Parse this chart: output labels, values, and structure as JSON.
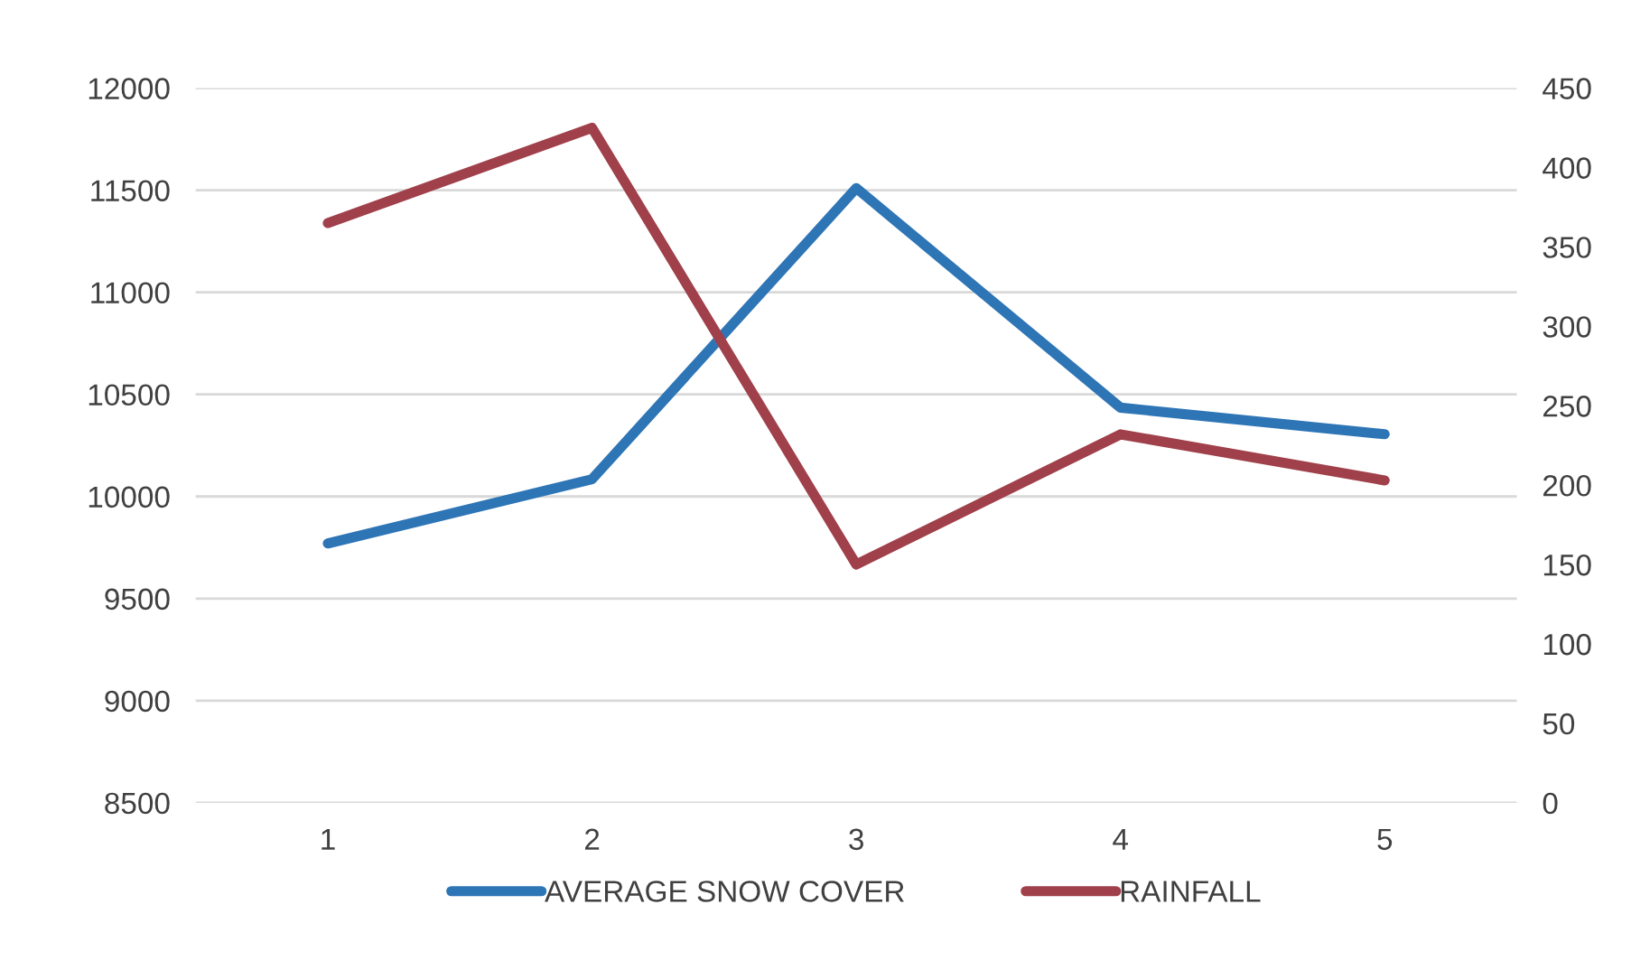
{
  "chart_data": {
    "type": "line",
    "categories": [
      "1",
      "2",
      "3",
      "4",
      "5"
    ],
    "series": [
      {
        "name": "AVERAGE SNOW COVER",
        "color": "#2e75b6",
        "values": [
          9770,
          10085,
          11510,
          10435,
          10305
        ]
      },
      {
        "name": "RAINFALL",
        "color": "#a0404a",
        "axis": "y2",
        "values": [
          365,
          425,
          150,
          232,
          203
        ]
      }
    ],
    "ylim": [
      8500,
      12000
    ],
    "yticks": [
      8500,
      9000,
      9500,
      10000,
      10500,
      11000,
      11500,
      12000
    ],
    "y2lim": [
      0,
      450
    ],
    "y2ticks": [
      0,
      50,
      100,
      150,
      200,
      250,
      300,
      350,
      400,
      450
    ],
    "grid": "y",
    "legend": "bottom",
    "marker": "none",
    "line_style": "solid"
  }
}
